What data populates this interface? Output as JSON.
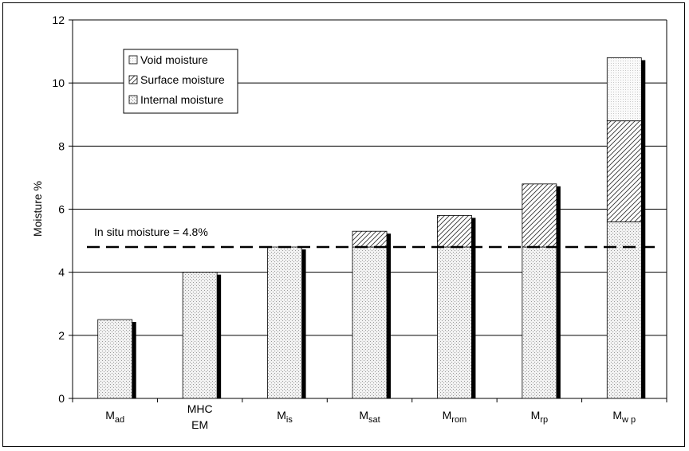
{
  "chart_data": {
    "type": "bar",
    "stacked": true,
    "ylabel": "Moisture %",
    "ylim": [
      0,
      12
    ],
    "yticks": [
      "0",
      "2",
      "4",
      "6",
      "8",
      "10",
      "12"
    ],
    "grid": "horizontal",
    "legend_position": "top-left",
    "categories": [
      {
        "main": "M",
        "sub": "ad"
      },
      {
        "main": "MHC",
        "line2": "EM"
      },
      {
        "main": "M",
        "sub": "is"
      },
      {
        "main": "M",
        "sub": "sat"
      },
      {
        "main": "M",
        "sub": "rom"
      },
      {
        "main": "M",
        "sub": "rp"
      },
      {
        "main": "M",
        "sub": "w p"
      }
    ],
    "series": [
      {
        "name": "Internal moisture",
        "values": [
          2.5,
          4.0,
          4.8,
          4.8,
          4.8,
          4.8,
          5.6
        ]
      },
      {
        "name": "Surface moisture",
        "values": [
          0,
          0,
          0,
          0.5,
          1.0,
          2.0,
          3.2
        ]
      },
      {
        "name": "Void moisture",
        "values": [
          0,
          0,
          0,
          0,
          0,
          0,
          2.0
        ]
      }
    ],
    "legend": [
      "Void moisture",
      "Surface moisture",
      "Internal moisture"
    ],
    "reference_line": {
      "value": 4.8,
      "label": "In situ moisture = 4.8%",
      "style": "dashed"
    }
  }
}
